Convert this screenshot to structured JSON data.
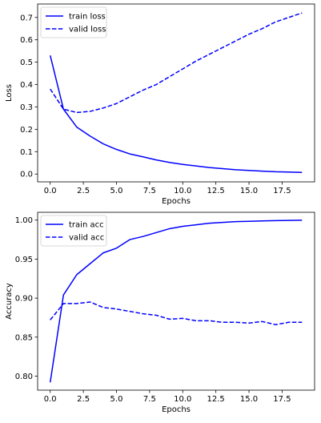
{
  "chart_data": [
    {
      "type": "line",
      "xlabel": "Epochs",
      "ylabel": "Loss",
      "xlim": [
        -0.95,
        19.95
      ],
      "ylim": [
        -0.035,
        0.76
      ],
      "xticks": [
        0.0,
        2.5,
        5.0,
        7.5,
        10.0,
        12.5,
        15.0,
        17.5
      ],
      "xtick_labels": [
        "0.0",
        "2.5",
        "5.0",
        "7.5",
        "10.0",
        "12.5",
        "15.0",
        "17.5"
      ],
      "yticks": [
        0.0,
        0.1,
        0.2,
        0.3,
        0.4,
        0.5,
        0.6,
        0.7
      ],
      "ytick_labels": [
        "0.0",
        "0.1",
        "0.2",
        "0.3",
        "0.4",
        "0.5",
        "0.6",
        "0.7"
      ],
      "legend_position": "top-left",
      "grid": false,
      "x": [
        0,
        1,
        2,
        3,
        4,
        5,
        6,
        7,
        8,
        9,
        10,
        11,
        12,
        13,
        14,
        15,
        16,
        17,
        18,
        19
      ],
      "series": [
        {
          "name": "train loss",
          "style": "solid",
          "color": "#0000ff",
          "values": [
            0.53,
            0.29,
            0.21,
            0.17,
            0.135,
            0.11,
            0.09,
            0.077,
            0.063,
            0.052,
            0.043,
            0.036,
            0.029,
            0.024,
            0.019,
            0.016,
            0.013,
            0.01,
            0.009,
            0.007
          ]
        },
        {
          "name": "valid loss",
          "style": "dashed",
          "color": "#0000ff",
          "values": [
            0.38,
            0.29,
            0.275,
            0.28,
            0.295,
            0.315,
            0.345,
            0.375,
            0.4,
            0.435,
            0.47,
            0.505,
            0.535,
            0.565,
            0.595,
            0.625,
            0.65,
            0.68,
            0.7,
            0.72
          ]
        }
      ]
    },
    {
      "type": "line",
      "xlabel": "Epochs",
      "ylabel": "Accuracy",
      "xlim": [
        -0.95,
        19.95
      ],
      "ylim": [
        0.782,
        1.01
      ],
      "xticks": [
        0.0,
        2.5,
        5.0,
        7.5,
        10.0,
        12.5,
        15.0,
        17.5
      ],
      "xtick_labels": [
        "0.0",
        "2.5",
        "5.0",
        "7.5",
        "10.0",
        "12.5",
        "15.0",
        "17.5"
      ],
      "yticks": [
        0.8,
        0.85,
        0.9,
        0.95,
        1.0
      ],
      "ytick_labels": [
        "0.80",
        "0.85",
        "0.90",
        "0.95",
        "1.00"
      ],
      "legend_position": "top-left",
      "grid": false,
      "x": [
        0,
        1,
        2,
        3,
        4,
        5,
        6,
        7,
        8,
        9,
        10,
        11,
        12,
        13,
        14,
        15,
        16,
        17,
        18,
        19
      ],
      "series": [
        {
          "name": "train acc",
          "style": "solid",
          "color": "#0000ff",
          "values": [
            0.792,
            0.904,
            0.93,
            0.944,
            0.958,
            0.964,
            0.975,
            0.979,
            0.984,
            0.989,
            0.992,
            0.994,
            0.996,
            0.997,
            0.998,
            0.9985,
            0.999,
            0.9993,
            0.9996,
            0.9998
          ]
        },
        {
          "name": "valid acc",
          "style": "dashed",
          "color": "#0000ff",
          "values": [
            0.872,
            0.893,
            0.893,
            0.895,
            0.888,
            0.886,
            0.883,
            0.88,
            0.878,
            0.873,
            0.874,
            0.871,
            0.871,
            0.869,
            0.869,
            0.868,
            0.87,
            0.866,
            0.869,
            0.869
          ]
        }
      ]
    }
  ]
}
